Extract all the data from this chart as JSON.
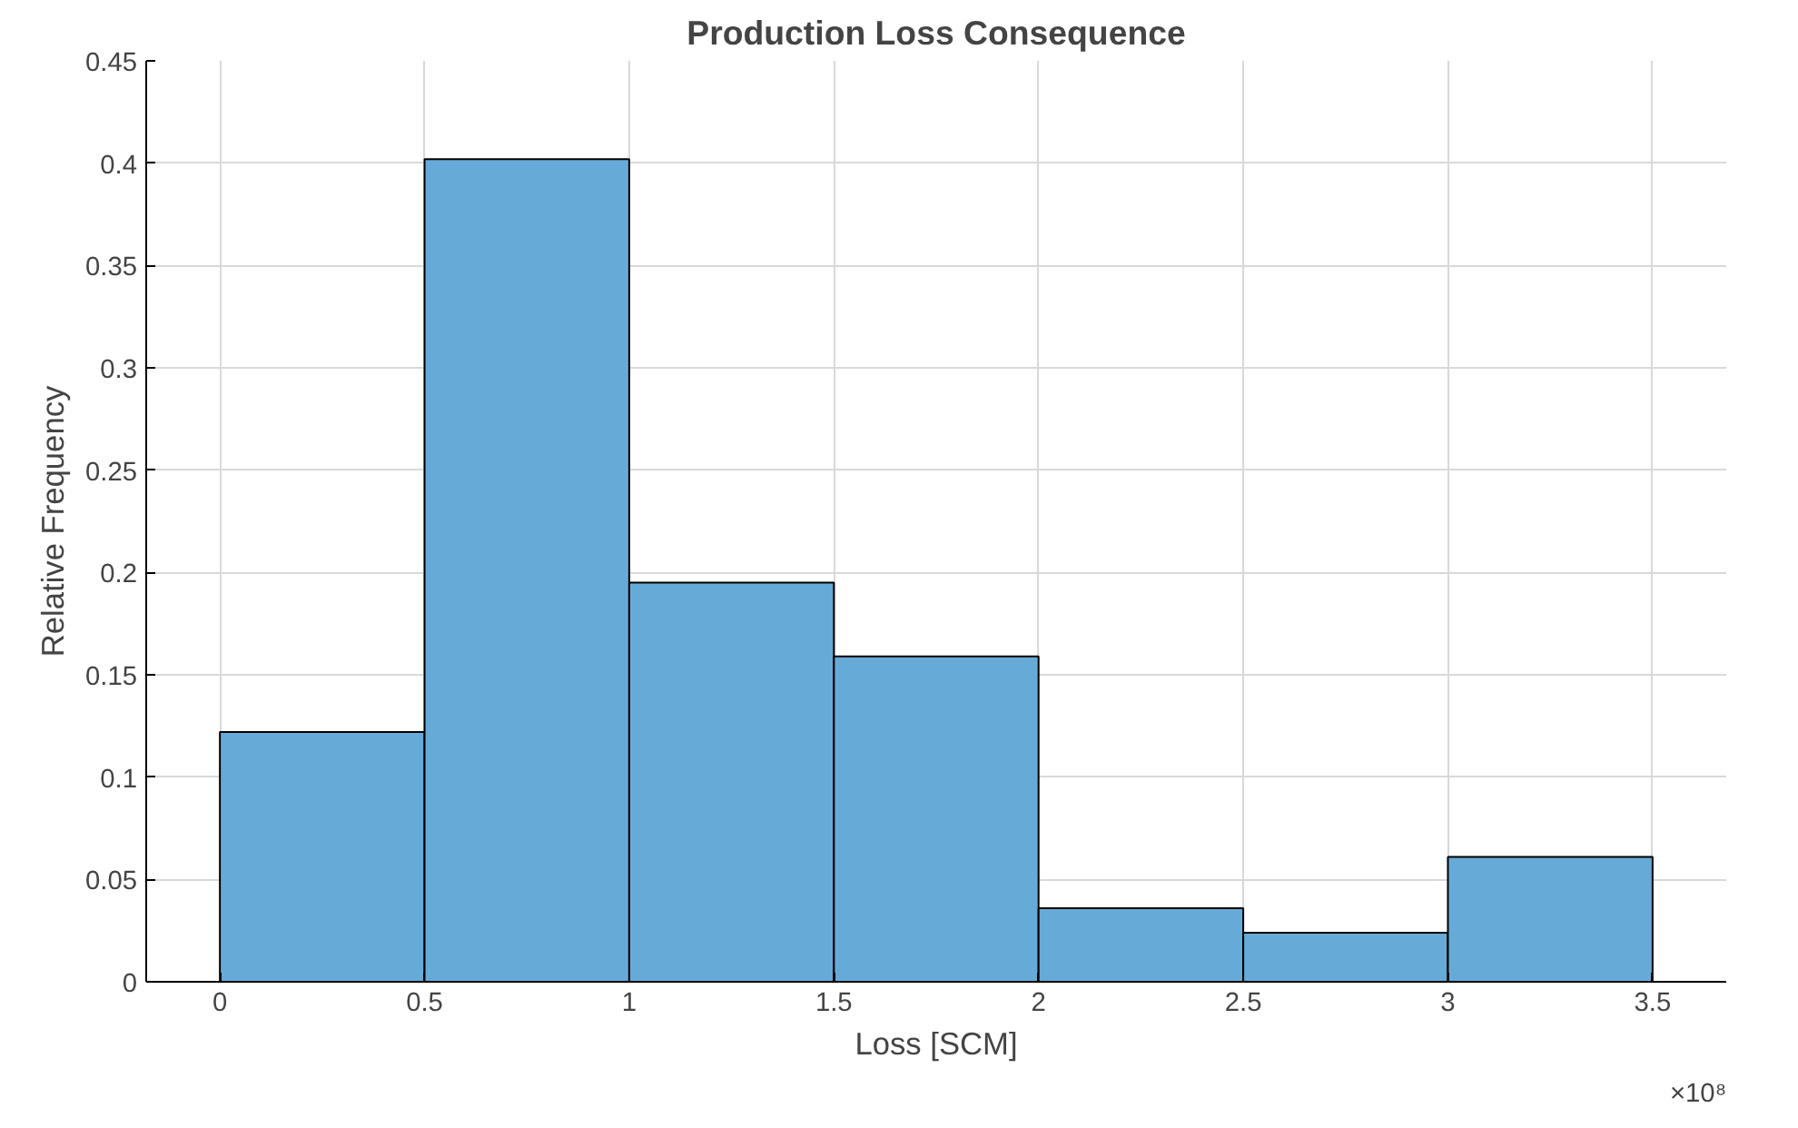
{
  "chart_data": {
    "type": "histogram",
    "title": "Production Loss Consequence",
    "xlabel": "Loss [SCM]",
    "ylabel": "Relative Frequency",
    "bins": [
      0,
      0.5,
      1,
      1.5,
      2,
      2.5,
      3,
      3.5
    ],
    "values": [
      0.122,
      0.402,
      0.195,
      0.159,
      0.036,
      0.024,
      0.061
    ],
    "color": "#66aad7",
    "xlim": [
      -0.18,
      3.68
    ],
    "xticks": [
      0,
      0.5,
      1,
      1.5,
      2,
      2.5,
      3,
      3.5
    ],
    "ylim": [
      0,
      0.45
    ],
    "yticks": [
      0,
      0.05,
      0.1,
      0.15,
      0.2,
      0.25,
      0.3,
      0.35,
      0.4,
      0.45
    ],
    "grid": true,
    "annotations": [
      "×10⁸"
    ]
  }
}
